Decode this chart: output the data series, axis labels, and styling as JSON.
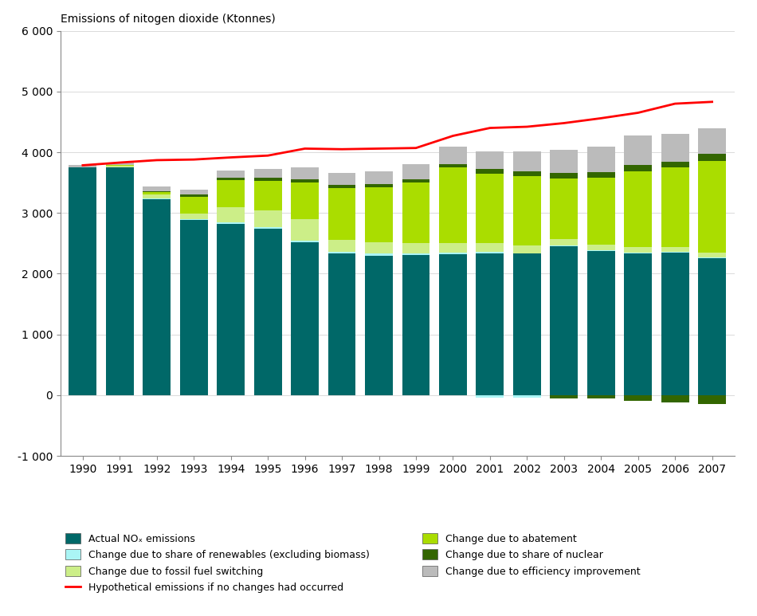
{
  "years": [
    1990,
    1991,
    1992,
    1993,
    1994,
    1995,
    1996,
    1997,
    1998,
    1999,
    2000,
    2001,
    2002,
    2003,
    2004,
    2005,
    2006,
    2007
  ],
  "actual_nox": [
    3750,
    3750,
    3220,
    2880,
    2820,
    2740,
    2520,
    2330,
    2300,
    2310,
    2320,
    2330,
    2330,
    2450,
    2370,
    2340,
    2350,
    2260
  ],
  "renewables": [
    5,
    5,
    20,
    20,
    25,
    30,
    30,
    30,
    30,
    30,
    30,
    30,
    10,
    10,
    10,
    10,
    10,
    10
  ],
  "fossil_fuel": [
    0,
    20,
    60,
    90,
    250,
    270,
    350,
    200,
    190,
    170,
    150,
    140,
    120,
    110,
    100,
    90,
    85,
    80
  ],
  "abatement": [
    0,
    10,
    40,
    280,
    450,
    490,
    600,
    850,
    900,
    990,
    1250,
    1150,
    1150,
    1000,
    1100,
    1250,
    1300,
    1500
  ],
  "nuclear": [
    0,
    5,
    20,
    30,
    40,
    50,
    60,
    50,
    50,
    50,
    60,
    70,
    80,
    90,
    90,
    100,
    100,
    120
  ],
  "efficiency": [
    30,
    40,
    70,
    90,
    120,
    150,
    190,
    200,
    220,
    250,
    280,
    290,
    330,
    380,
    420,
    480,
    460,
    430
  ],
  "neg_renewables": [
    0,
    0,
    0,
    0,
    0,
    0,
    0,
    0,
    0,
    0,
    0,
    -40,
    -40,
    0,
    0,
    0,
    0,
    0
  ],
  "neg_nuclear": [
    0,
    0,
    0,
    0,
    0,
    0,
    0,
    0,
    0,
    0,
    0,
    0,
    0,
    -50,
    -50,
    -100,
    -120,
    -150
  ],
  "hypothetical": [
    3785,
    3830,
    3870,
    3880,
    3915,
    3945,
    4060,
    4050,
    4060,
    4070,
    4270,
    4400,
    4420,
    4480,
    4560,
    4650,
    4800,
    4830
  ],
  "colors": {
    "actual_nox": "#006868",
    "renewables": "#aaf5f5",
    "fossil_fuel": "#ccee88",
    "abatement": "#aadd00",
    "nuclear": "#336600",
    "efficiency": "#bbbbbb",
    "hypothetical": "#ff0000"
  },
  "title": "Emissions of nitogen dioxide (Ktonnes)",
  "ylim": [
    -1000,
    6000
  ],
  "yticks": [
    -1000,
    0,
    1000,
    2000,
    3000,
    4000,
    5000,
    6000
  ],
  "ytick_labels": [
    "-1 000",
    "0",
    "1 000",
    "2 000",
    "3 000",
    "4 000",
    "5 000",
    "6 000"
  ]
}
